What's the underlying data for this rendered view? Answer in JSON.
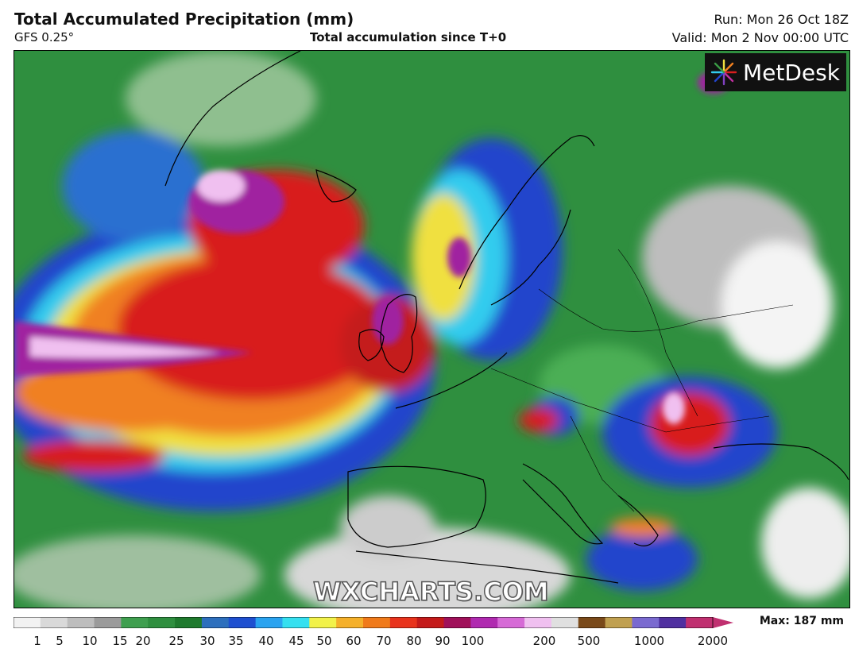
{
  "header": {
    "title": "Total Accumulated Precipitation (mm)",
    "model": "GFS 0.25°",
    "subtitle": "Total accumulation since T+0",
    "run": "Run: Mon 26 Oct 18Z",
    "valid": "Valid: Mon 2 Nov 00:00 UTC"
  },
  "logo": {
    "text": "MetDesk",
    "icon": "starburst-logo-icon"
  },
  "watermark": "WXCHARTS.COM",
  "legend": {
    "max_label": "Max: 187 mm",
    "ticks": [
      "1",
      "5",
      "10",
      "15",
      "20",
      "25",
      "30",
      "35",
      "40",
      "45",
      "50",
      "60",
      "70",
      "80",
      "90",
      "100",
      "200",
      "500",
      "1000",
      "2000"
    ],
    "colors": [
      "#f2f2f2",
      "#d9d9d9",
      "#bdbdbd",
      "#9b9b9b",
      "#3f9f4f",
      "#2f8f3f",
      "#1f7a2e",
      "#2d6fbd",
      "#1e4fd0",
      "#2aa3f0",
      "#35e0f0",
      "#f2f24a",
      "#f5b02a",
      "#f07a1a",
      "#e8331c",
      "#c41a1a",
      "#a0105a",
      "#b02ab0",
      "#d66ad6",
      "#f0c0f0",
      "#e0e0e0",
      "#7a4a1a",
      "#c0a050",
      "#7a6ad0",
      "#5030a0",
      "#c03070"
    ]
  },
  "map": {
    "palette": {
      "land_green": "#3a9a45",
      "sea_green": "#2f8f3f",
      "grey": "#b8b8b8",
      "white": "#f4f4f4",
      "blue": "#2244cc",
      "cyan": "#33ccee",
      "yellow": "#f0e040",
      "orange": "#f08020",
      "red": "#d81e1e",
      "darkred": "#9a0c1c",
      "purple": "#a020a0",
      "pink": "#e8a0e8",
      "coast": "#000000"
    }
  }
}
